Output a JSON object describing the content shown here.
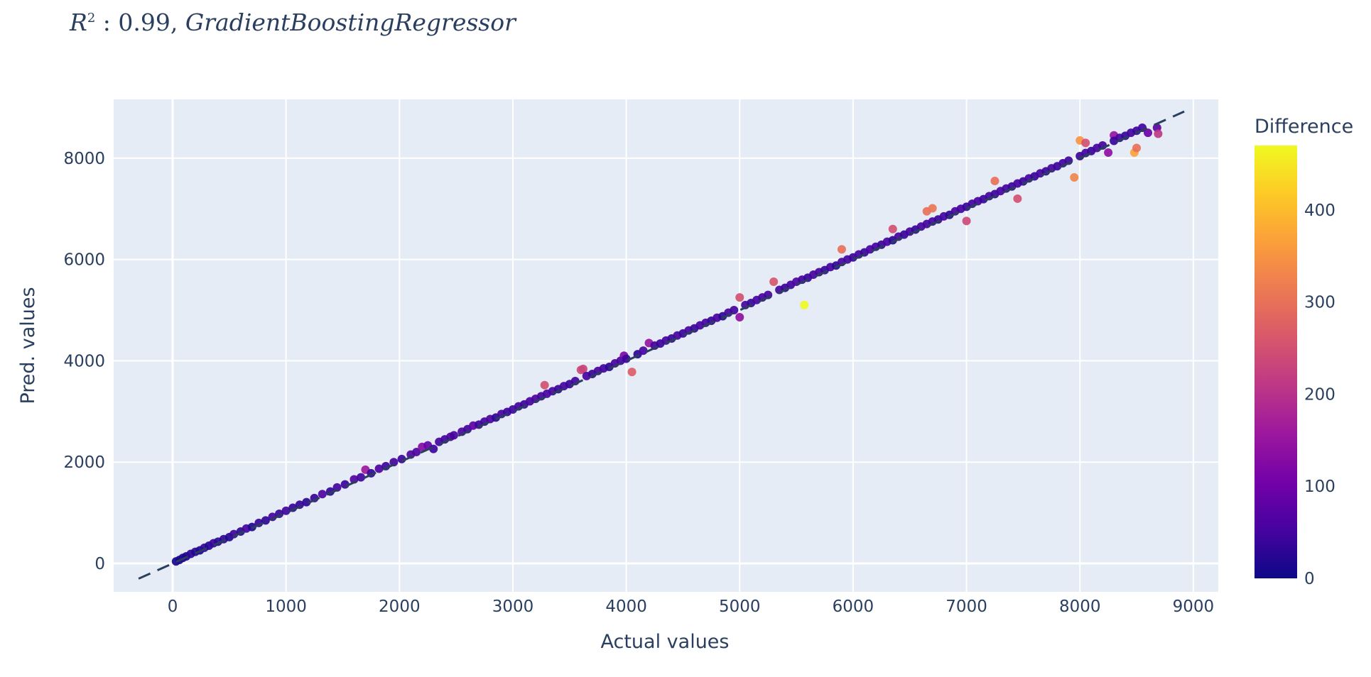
{
  "chart_data": {
    "type": "scatter",
    "title": {
      "r2_symbol": "R",
      "exponent": "2",
      "separator": " : ",
      "value": "0.99, ",
      "model": "GradientBoostingRegressor"
    },
    "xlabel": "Actual values",
    "ylabel": "Pred. values",
    "xlim": [
      -520,
      9220
    ],
    "ylim": [
      -560,
      9160
    ],
    "x_ticks": [
      0,
      1000,
      2000,
      3000,
      4000,
      5000,
      6000,
      7000,
      8000,
      9000
    ],
    "y_ticks": [
      0,
      2000,
      4000,
      6000,
      8000
    ],
    "grid": true,
    "reference_line": {
      "style": "dashed",
      "from": [
        -300,
        -300
      ],
      "to": [
        8920,
        8920
      ],
      "color": "#2a3f5f"
    },
    "colorbar": {
      "title": "Difference",
      "range": [
        0,
        470
      ],
      "ticks": [
        0,
        100,
        200,
        300,
        400
      ],
      "colorscale": [
        "#0d0887",
        "#46039f",
        "#7201a8",
        "#9c179e",
        "#bd3786",
        "#d8576b",
        "#ed7953",
        "#fb9f3a",
        "#fdca26",
        "#f0f921"
      ]
    },
    "points": [
      [
        30,
        40,
        10
      ],
      [
        60,
        70,
        15
      ],
      [
        90,
        110,
        20
      ],
      [
        120,
        140,
        12
      ],
      [
        160,
        190,
        30
      ],
      [
        200,
        230,
        25
      ],
      [
        240,
        260,
        18
      ],
      [
        280,
        310,
        35
      ],
      [
        320,
        350,
        22
      ],
      [
        360,
        400,
        40
      ],
      [
        400,
        430,
        28
      ],
      [
        450,
        480,
        32
      ],
      [
        500,
        520,
        20
      ],
      [
        540,
        580,
        45
      ],
      [
        600,
        630,
        30
      ],
      [
        650,
        690,
        50
      ],
      [
        700,
        720,
        20
      ],
      [
        760,
        800,
        40
      ],
      [
        820,
        850,
        30
      ],
      [
        880,
        920,
        55
      ],
      [
        940,
        980,
        40
      ],
      [
        1000,
        1040,
        45
      ],
      [
        1060,
        1100,
        40
      ],
      [
        1120,
        1160,
        38
      ],
      [
        1180,
        1210,
        30
      ],
      [
        1250,
        1290,
        42
      ],
      [
        1320,
        1370,
        60
      ],
      [
        1390,
        1420,
        35
      ],
      [
        1450,
        1500,
        55
      ],
      [
        1520,
        1560,
        40
      ],
      [
        1600,
        1660,
        70
      ],
      [
        1660,
        1700,
        48
      ],
      [
        1700,
        1850,
        160
      ],
      [
        1750,
        1780,
        35
      ],
      [
        1820,
        1870,
        60
      ],
      [
        1880,
        1920,
        45
      ],
      [
        1950,
        2000,
        55
      ],
      [
        2020,
        2060,
        42
      ],
      [
        2100,
        2150,
        70
      ],
      [
        2150,
        2200,
        60
      ],
      [
        2200,
        2300,
        130
      ],
      [
        2250,
        2330,
        90
      ],
      [
        2300,
        2260,
        45
      ],
      [
        2350,
        2400,
        52
      ],
      [
        2400,
        2450,
        50
      ],
      [
        2450,
        2500,
        60
      ],
      [
        2480,
        2530,
        55
      ],
      [
        2550,
        2600,
        60
      ],
      [
        2600,
        2650,
        50
      ],
      [
        2650,
        2720,
        80
      ],
      [
        2700,
        2740,
        45
      ],
      [
        2750,
        2800,
        55
      ],
      [
        2800,
        2850,
        60
      ],
      [
        2850,
        2880,
        30
      ],
      [
        2900,
        2950,
        55
      ],
      [
        2950,
        2990,
        42
      ],
      [
        3000,
        3040,
        45
      ],
      [
        3050,
        3100,
        50
      ],
      [
        3100,
        3140,
        40
      ],
      [
        3150,
        3200,
        55
      ],
      [
        3200,
        3250,
        60
      ],
      [
        3250,
        3300,
        50
      ],
      [
        3280,
        3520,
        250
      ],
      [
        3300,
        3350,
        55
      ],
      [
        3350,
        3400,
        55
      ],
      [
        3400,
        3440,
        40
      ],
      [
        3450,
        3500,
        55
      ],
      [
        3500,
        3540,
        40
      ],
      [
        3550,
        3600,
        50
      ],
      [
        3600,
        3820,
        240
      ],
      [
        3620,
        3840,
        230
      ],
      [
        3650,
        3700,
        55
      ],
      [
        3700,
        3740,
        40
      ],
      [
        3750,
        3800,
        55
      ],
      [
        3800,
        3850,
        50
      ],
      [
        3850,
        3880,
        30
      ],
      [
        3900,
        3950,
        55
      ],
      [
        3950,
        4000,
        50
      ],
      [
        3980,
        4100,
        120
      ],
      [
        4000,
        4040,
        40
      ],
      [
        4050,
        3780,
        270
      ],
      [
        4100,
        4130,
        30
      ],
      [
        4150,
        4200,
        55
      ],
      [
        4200,
        4350,
        150
      ],
      [
        4250,
        4300,
        50
      ],
      [
        4300,
        4340,
        40
      ],
      [
        4350,
        4400,
        50
      ],
      [
        4400,
        4440,
        40
      ],
      [
        4450,
        4500,
        55
      ],
      [
        4500,
        4540,
        40
      ],
      [
        4550,
        4600,
        55
      ],
      [
        4600,
        4640,
        40
      ],
      [
        4650,
        4700,
        50
      ],
      [
        4700,
        4750,
        55
      ],
      [
        4750,
        4790,
        40
      ],
      [
        4800,
        4850,
        55
      ],
      [
        4850,
        4880,
        30
      ],
      [
        4900,
        4950,
        55
      ],
      [
        4950,
        5000,
        50
      ],
      [
        5000,
        5250,
        250
      ],
      [
        5000,
        4860,
        140
      ],
      [
        5050,
        5100,
        55
      ],
      [
        5100,
        5140,
        40
      ],
      [
        5150,
        5200,
        55
      ],
      [
        5200,
        5250,
        50
      ],
      [
        5250,
        5300,
        55
      ],
      [
        5300,
        5560,
        260
      ],
      [
        5350,
        5400,
        50
      ],
      [
        5400,
        5440,
        40
      ],
      [
        5450,
        5500,
        50
      ],
      [
        5500,
        5560,
        60
      ],
      [
        5550,
        5600,
        50
      ],
      [
        5570,
        5100,
        470
      ],
      [
        5600,
        5640,
        40
      ],
      [
        5650,
        5700,
        50
      ],
      [
        5700,
        5750,
        55
      ],
      [
        5750,
        5790,
        40
      ],
      [
        5800,
        5850,
        50
      ],
      [
        5850,
        5880,
        30
      ],
      [
        5900,
        6200,
        300
      ],
      [
        5900,
        5950,
        55
      ],
      [
        5950,
        6000,
        50
      ],
      [
        6000,
        6040,
        40
      ],
      [
        6050,
        6100,
        55
      ],
      [
        6100,
        6140,
        40
      ],
      [
        6150,
        6200,
        55
      ],
      [
        6200,
        6250,
        50
      ],
      [
        6250,
        6290,
        40
      ],
      [
        6300,
        6350,
        55
      ],
      [
        6350,
        6600,
        250
      ],
      [
        6350,
        6380,
        30
      ],
      [
        6400,
        6450,
        55
      ],
      [
        6450,
        6490,
        40
      ],
      [
        6500,
        6550,
        50
      ],
      [
        6550,
        6590,
        40
      ],
      [
        6600,
        6650,
        55
      ],
      [
        6650,
        6950,
        300
      ],
      [
        6650,
        6700,
        50
      ],
      [
        6700,
        7010,
        310
      ],
      [
        6700,
        6750,
        55
      ],
      [
        6750,
        6790,
        40
      ],
      [
        6800,
        6850,
        50
      ],
      [
        6850,
        6880,
        30
      ],
      [
        6900,
        6950,
        55
      ],
      [
        6950,
        7000,
        50
      ],
      [
        7000,
        6760,
        240
      ],
      [
        7000,
        7040,
        40
      ],
      [
        7050,
        7100,
        50
      ],
      [
        7100,
        7150,
        55
      ],
      [
        7150,
        7190,
        40
      ],
      [
        7200,
        7250,
        50
      ],
      [
        7250,
        7550,
        300
      ],
      [
        7250,
        7290,
        40
      ],
      [
        7300,
        7350,
        55
      ],
      [
        7350,
        7400,
        50
      ],
      [
        7400,
        7440,
        40
      ],
      [
        7450,
        7200,
        250
      ],
      [
        7450,
        7500,
        50
      ],
      [
        7500,
        7540,
        40
      ],
      [
        7550,
        7600,
        55
      ],
      [
        7600,
        7640,
        40
      ],
      [
        7650,
        7700,
        50
      ],
      [
        7700,
        7740,
        40
      ],
      [
        7750,
        7800,
        55
      ],
      [
        7800,
        7840,
        40
      ],
      [
        7850,
        7900,
        50
      ],
      [
        7900,
        7950,
        45
      ],
      [
        7950,
        7620,
        330
      ],
      [
        8000,
        8350,
        350
      ],
      [
        8000,
        8040,
        40
      ],
      [
        8050,
        8300,
        250
      ],
      [
        8050,
        8100,
        50
      ],
      [
        8100,
        8140,
        40
      ],
      [
        8150,
        8200,
        55
      ],
      [
        8200,
        8250,
        50
      ],
      [
        8250,
        8110,
        140
      ],
      [
        8300,
        8450,
        150
      ],
      [
        8300,
        8340,
        40
      ],
      [
        8350,
        8400,
        50
      ],
      [
        8400,
        8440,
        40
      ],
      [
        8450,
        8500,
        50
      ],
      [
        8480,
        8110,
        370
      ],
      [
        8500,
        8200,
        300
      ],
      [
        8500,
        8540,
        40
      ],
      [
        8550,
        8600,
        50
      ],
      [
        8600,
        8500,
        100
      ],
      [
        8680,
        8600,
        80
      ],
      [
        8690,
        8480,
        210
      ]
    ]
  }
}
